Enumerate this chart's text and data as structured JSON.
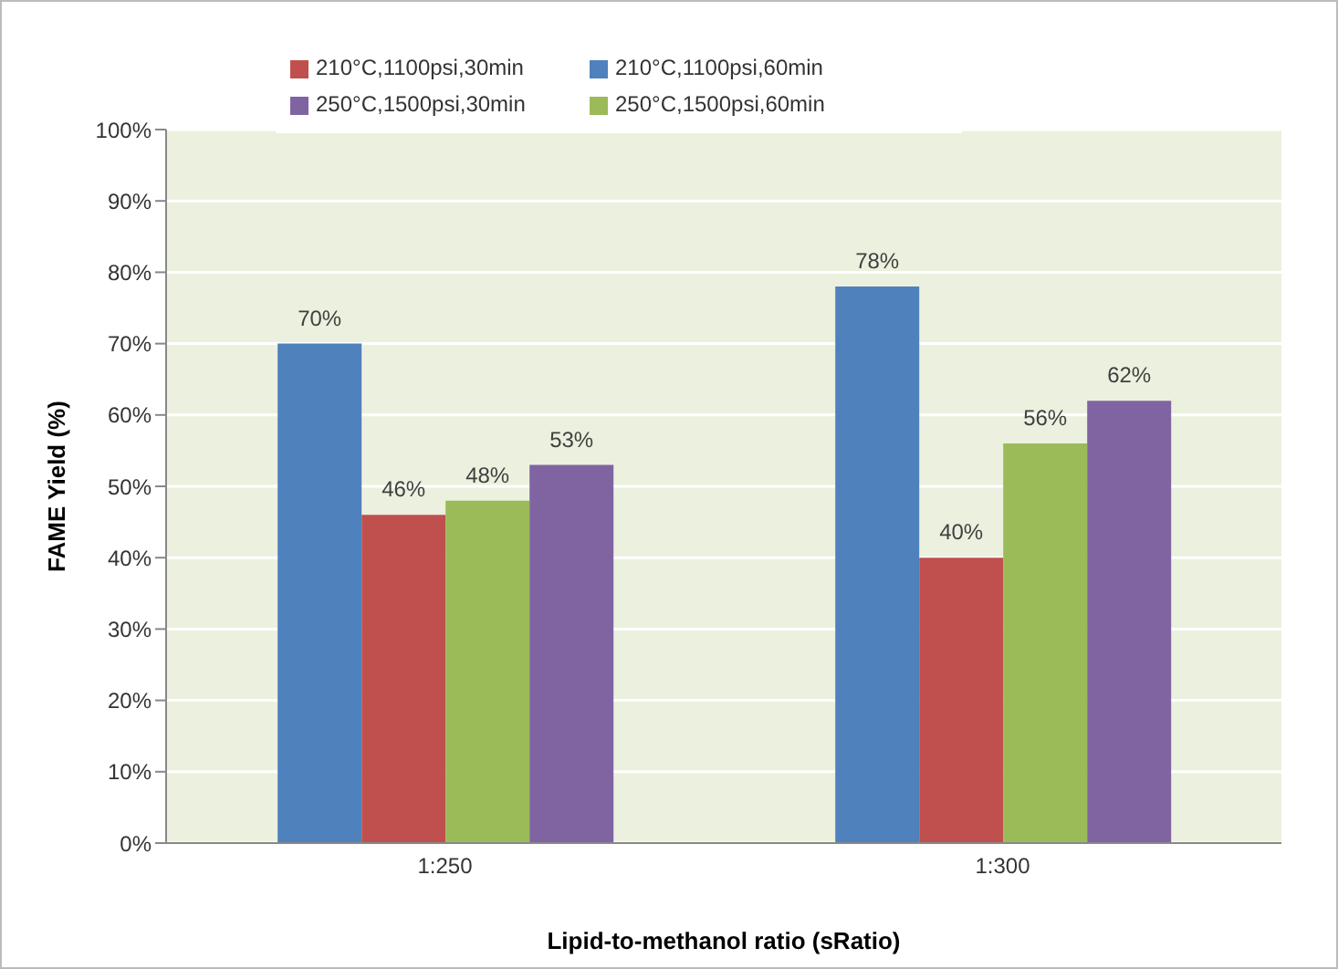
{
  "chart_data": {
    "type": "bar",
    "xlabel": "Lipid-to-methanol ratio (sRatio)",
    "ylabel": "FAME Yield (%)",
    "categories": [
      "1:250",
      "1:300"
    ],
    "series": [
      {
        "name": "210°C,1100psi,60min",
        "color": "#4f81bd",
        "values": [
          70,
          78
        ],
        "value_labels": [
          "70%",
          "78%"
        ]
      },
      {
        "name": "210°C,1100psi,30min",
        "color": "#c0504d",
        "values": [
          46,
          40
        ],
        "value_labels": [
          "46%",
          "40%"
        ]
      },
      {
        "name": "250°C,1500psi,60min",
        "color": "#9bbb59",
        "values": [
          48,
          56
        ],
        "value_labels": [
          "48%",
          "56%"
        ]
      },
      {
        "name": "250°C,1500psi,30min",
        "color": "#8064a2",
        "values": [
          53,
          62
        ],
        "value_labels": [
          "53%",
          "62%"
        ]
      }
    ],
    "ylim": [
      0,
      100
    ],
    "yticks": [
      {
        "value": 0,
        "label": "0%"
      },
      {
        "value": 10,
        "label": "10%"
      },
      {
        "value": 20,
        "label": "20%"
      },
      {
        "value": 30,
        "label": "30%"
      },
      {
        "value": 40,
        "label": "40%"
      },
      {
        "value": 50,
        "label": "50%"
      },
      {
        "value": 60,
        "label": "60%"
      },
      {
        "value": 70,
        "label": "70%"
      },
      {
        "value": 80,
        "label": "80%"
      },
      {
        "value": 90,
        "label": "90%"
      },
      {
        "value": 100,
        "label": "100%"
      }
    ],
    "grid": "y",
    "legend": "top left"
  }
}
